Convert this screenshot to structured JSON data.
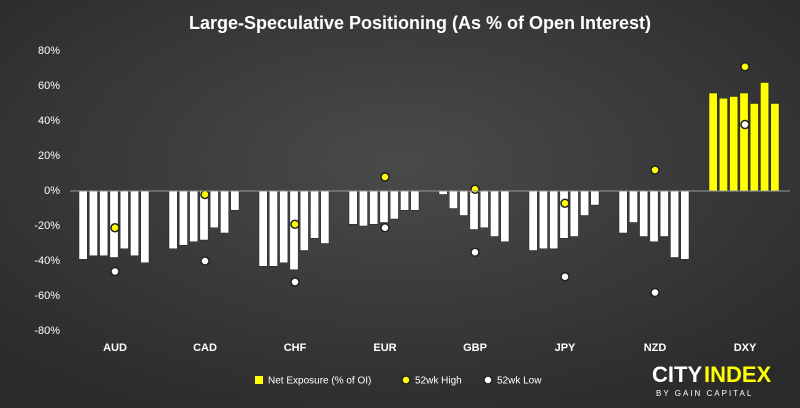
{
  "chart_data": {
    "type": "grouped-bar-dots",
    "title": "Large-Speculative Positioning (As % of Open Interest)",
    "categories": [
      "AUD",
      "CAD",
      "CHF",
      "EUR",
      "GBP",
      "JPY",
      "NZD",
      "DXY"
    ],
    "group_colors": [
      "#ffffff",
      "#ffffff",
      "#ffffff",
      "#ffffff",
      "#ffffff",
      "#ffffff",
      "#ffffff",
      "#ffff00"
    ],
    "series": [
      {
        "name": "Net Exposure (% of OI)",
        "color": "#ffff00",
        "values": [
          [
            -39,
            -37,
            -37,
            -38,
            -33,
            -37,
            -41
          ],
          [
            -33,
            -31,
            -29,
            -28,
            -21,
            -24,
            -11
          ],
          [
            -43,
            -43,
            -41,
            -45,
            -34,
            -27,
            -30
          ],
          [
            -19,
            -20,
            -19,
            -18,
            -16,
            -11,
            -11
          ],
          [
            -2,
            -10,
            -14,
            -22,
            -21,
            -26,
            -29
          ],
          [
            -34,
            -33,
            -33,
            -27,
            -26,
            -14,
            -8
          ],
          [
            -24,
            -18,
            -26,
            -29,
            -26,
            -38,
            -39
          ],
          [
            56,
            53,
            54,
            56,
            50,
            62,
            50
          ]
        ]
      },
      {
        "name": "52wk High",
        "color": "#ffff00",
        "values": [
          -21,
          -2,
          -19,
          8,
          1,
          -7,
          12,
          71
        ]
      },
      {
        "name": "52wk Low",
        "color": "#ffffff",
        "values": [
          -46,
          -40,
          -52,
          -21,
          -35,
          -49,
          -58,
          38
        ]
      }
    ],
    "ylim": [
      -80,
      80
    ],
    "yticks": [
      {
        "value": -80,
        "label": "-80%"
      },
      {
        "value": -60,
        "label": "-60%"
      },
      {
        "value": -40,
        "label": "-40%"
      },
      {
        "value": -20,
        "label": "-20%"
      },
      {
        "value": 0,
        "label": "0%"
      },
      {
        "value": 20,
        "label": "20%"
      },
      {
        "value": 40,
        "label": "40%"
      },
      {
        "value": 60,
        "label": "60%"
      },
      {
        "value": 80,
        "label": "80%"
      }
    ],
    "grid": false,
    "legend": "bottom",
    "branding": {
      "name_part1": "CITY",
      "name_part2": "INDEX",
      "tagline": "BY GAIN CAPITAL"
    }
  }
}
